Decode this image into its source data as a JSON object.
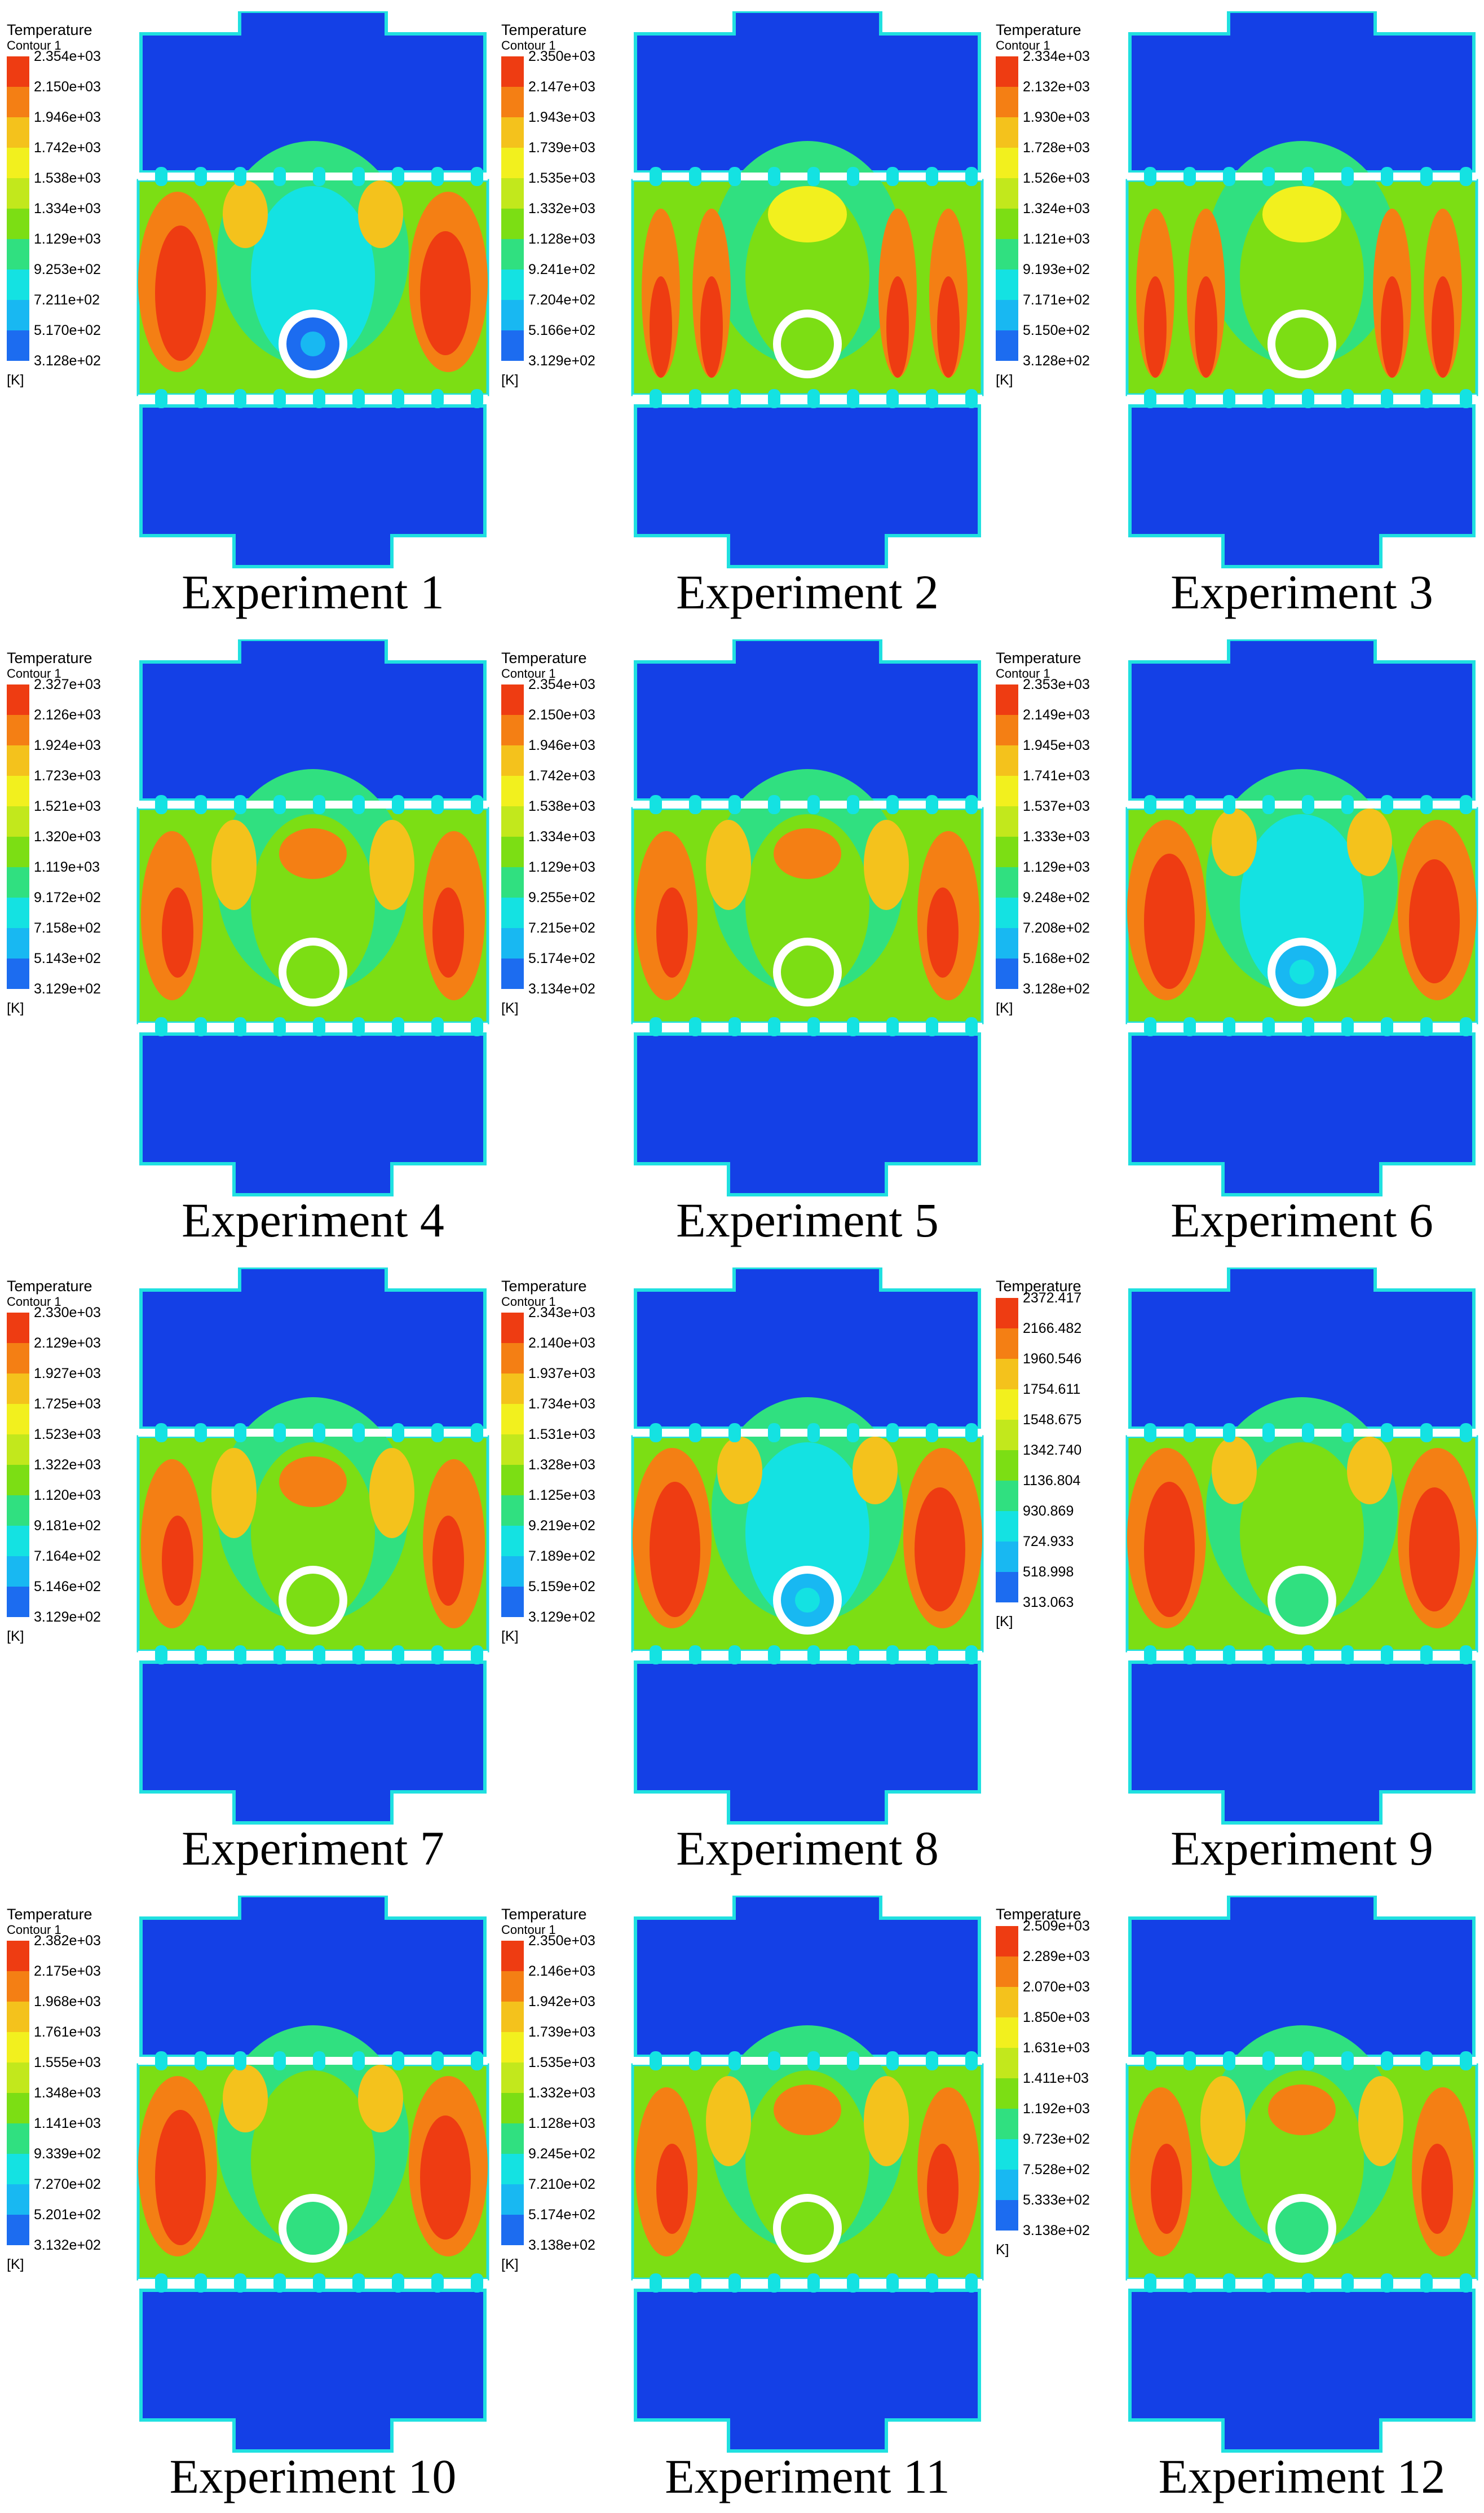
{
  "legend_heading": "Temperature",
  "colors": {
    "levels": [
      "#1414e0",
      "#1c6cf0",
      "#18b8f2",
      "#14e2e2",
      "#30e080",
      "#7cde14",
      "#c2e81c",
      "#f2f01e",
      "#f4c21c",
      "#f47f14",
      "#ee3c12"
    ],
    "domain_blue": "#1440e6",
    "domain_edge": "#20e0e0",
    "slot_white": "#ffffff",
    "probe_ring": "#ffffff"
  },
  "panels": [
    {
      "caption": "Experiment 1",
      "subtitle": "Contour 1",
      "unit": "[K]",
      "ticks": [
        "2.354e+03",
        "2.150e+03",
        "1.946e+03",
        "1.742e+03",
        "1.538e+03",
        "1.334e+03",
        "1.129e+03",
        "9.253e+02",
        "7.211e+02",
        "5.170e+02",
        "3.128e+02"
      ],
      "probe_level": 1,
      "side_heat": "strong"
    },
    {
      "caption": "Experiment 2",
      "subtitle": "Contour 1",
      "unit": "[K]",
      "ticks": [
        "2.350e+03",
        "2.147e+03",
        "1.943e+03",
        "1.739e+03",
        "1.535e+03",
        "1.332e+03",
        "1.128e+03",
        "9.241e+02",
        "7.204e+02",
        "5.166e+02",
        "3.129e+02"
      ],
      "probe_level": 5,
      "side_heat": "columns"
    },
    {
      "caption": "Experiment 3",
      "subtitle": "Contour 1",
      "unit": "[K]",
      "ticks": [
        "2.334e+03",
        "2.132e+03",
        "1.930e+03",
        "1.728e+03",
        "1.526e+03",
        "1.324e+03",
        "1.121e+03",
        "9.193e+02",
        "7.171e+02",
        "5.150e+02",
        "3.128e+02"
      ],
      "probe_level": 5,
      "side_heat": "columns"
    },
    {
      "caption": "Experiment 4",
      "subtitle": "Contour 1",
      "unit": "[K]",
      "ticks": [
        "2.327e+03",
        "2.126e+03",
        "1.924e+03",
        "1.723e+03",
        "1.521e+03",
        "1.320e+03",
        "1.119e+03",
        "9.172e+02",
        "7.158e+02",
        "5.143e+02",
        "3.129e+02"
      ],
      "probe_level": 5,
      "side_heat": "mixed"
    },
    {
      "caption": "Experiment 5",
      "subtitle": "Contour 1",
      "unit": "[K]",
      "ticks": [
        "2.354e+03",
        "2.150e+03",
        "1.946e+03",
        "1.742e+03",
        "1.538e+03",
        "1.334e+03",
        "1.129e+03",
        "9.255e+02",
        "7.215e+02",
        "5.174e+02",
        "3.134e+02"
      ],
      "probe_level": 5,
      "side_heat": "mixed"
    },
    {
      "caption": "Experiment 6",
      "subtitle": "Contour 1",
      "unit": "[K]",
      "ticks": [
        "2.353e+03",
        "2.149e+03",
        "1.945e+03",
        "1.741e+03",
        "1.537e+03",
        "1.333e+03",
        "1.129e+03",
        "9.248e+02",
        "7.208e+02",
        "5.168e+02",
        "3.128e+02"
      ],
      "probe_level": 2,
      "side_heat": "strong"
    },
    {
      "caption": "Experiment 7",
      "subtitle": "Contour 1",
      "unit": "[K]",
      "ticks": [
        "2.330e+03",
        "2.129e+03",
        "1.927e+03",
        "1.725e+03",
        "1.523e+03",
        "1.322e+03",
        "1.120e+03",
        "9.181e+02",
        "7.164e+02",
        "5.146e+02",
        "3.129e+02"
      ],
      "probe_level": 5,
      "side_heat": "mixed"
    },
    {
      "caption": "Experiment 8",
      "subtitle": "Contour 1",
      "unit": "[K]",
      "ticks": [
        "2.343e+03",
        "2.140e+03",
        "1.937e+03",
        "1.734e+03",
        "1.531e+03",
        "1.328e+03",
        "1.125e+03",
        "9.219e+02",
        "7.189e+02",
        "5.159e+02",
        "3.129e+02"
      ],
      "probe_level": 2,
      "side_heat": "strong"
    },
    {
      "caption": "Experiment 9",
      "subtitle": "",
      "unit": "[K]",
      "ticks": [
        "2372.417",
        "2166.482",
        "1960.546",
        "1754.611",
        "1548.675",
        "1342.740",
        "1136.804",
        "930.869",
        "724.933",
        "518.998",
        "313.063"
      ],
      "probe_level": 4,
      "side_heat": "strong"
    },
    {
      "caption": "Experiment 10",
      "subtitle": "Contour 1",
      "unit": "[K]",
      "ticks": [
        "2.382e+03",
        "2.175e+03",
        "1.968e+03",
        "1.761e+03",
        "1.555e+03",
        "1.348e+03",
        "1.141e+03",
        "9.339e+02",
        "7.270e+02",
        "5.201e+02",
        "3.132e+02"
      ],
      "probe_level": 4,
      "side_heat": "strong"
    },
    {
      "caption": "Experiment 11",
      "subtitle": "Contour 1",
      "unit": "[K]",
      "ticks": [
        "2.350e+03",
        "2.146e+03",
        "1.942e+03",
        "1.739e+03",
        "1.535e+03",
        "1.332e+03",
        "1.128e+03",
        "9.245e+02",
        "7.210e+02",
        "5.174e+02",
        "3.138e+02"
      ],
      "probe_level": 5,
      "side_heat": "mixed"
    },
    {
      "caption": "Experiment 12",
      "subtitle": "",
      "unit": "K]",
      "ticks": [
        "2.509e+03",
        "2.289e+03",
        "2.070e+03",
        "1.850e+03",
        "1.631e+03",
        "1.411e+03",
        "1.192e+03",
        "9.723e+02",
        "7.528e+02",
        "5.333e+02",
        "3.138e+02"
      ],
      "probe_level": 4,
      "side_heat": "mixed"
    }
  ]
}
